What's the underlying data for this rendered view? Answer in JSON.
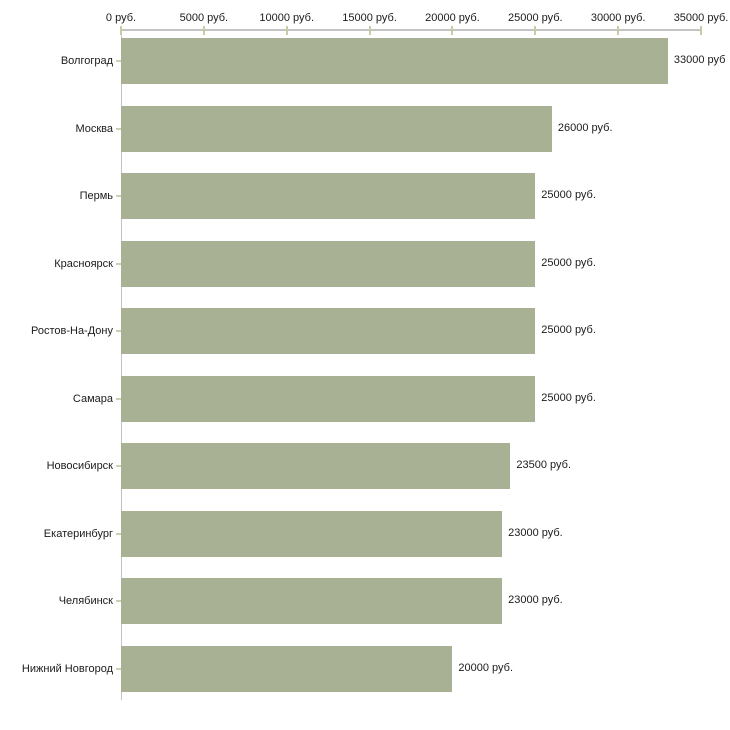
{
  "chart_data": {
    "type": "bar",
    "orientation": "horizontal",
    "title": "",
    "xlabel": "",
    "ylabel": "",
    "unit": "руб.",
    "xlim": [
      0,
      35000
    ],
    "grid": "off",
    "legend": "none",
    "x_ticks": [
      "0 руб.",
      "5000 руб.",
      "10000 руб.",
      "15000 руб.",
      "20000 руб.",
      "25000 руб.",
      "30000 руб.",
      "35000 руб."
    ],
    "categories": [
      "Волгоград",
      "Москва",
      "Пермь",
      "Красноярск",
      "Ростов-На-Дону",
      "Самара",
      "Новосибирск",
      "Екатеринбург",
      "Челябинск",
      "Нижний Новгород"
    ],
    "values": [
      33000,
      26000,
      25000,
      25000,
      25000,
      25000,
      23500,
      23000,
      23000,
      20000
    ],
    "value_labels": [
      "33000 руб",
      "26000 руб.",
      "25000 руб.",
      "25000 руб.",
      "25000 руб.",
      "25000 руб.",
      "23500 руб.",
      "23000 руб.",
      "23000 руб.",
      "20000 руб."
    ],
    "colors": {
      "bar": "#a8b194",
      "axis_line": "#c4c4c4",
      "axis_tick": "#c9cba4",
      "category_tick": "#d0ccb6",
      "text": "#1b1b1b",
      "background": "#ffffff"
    }
  }
}
